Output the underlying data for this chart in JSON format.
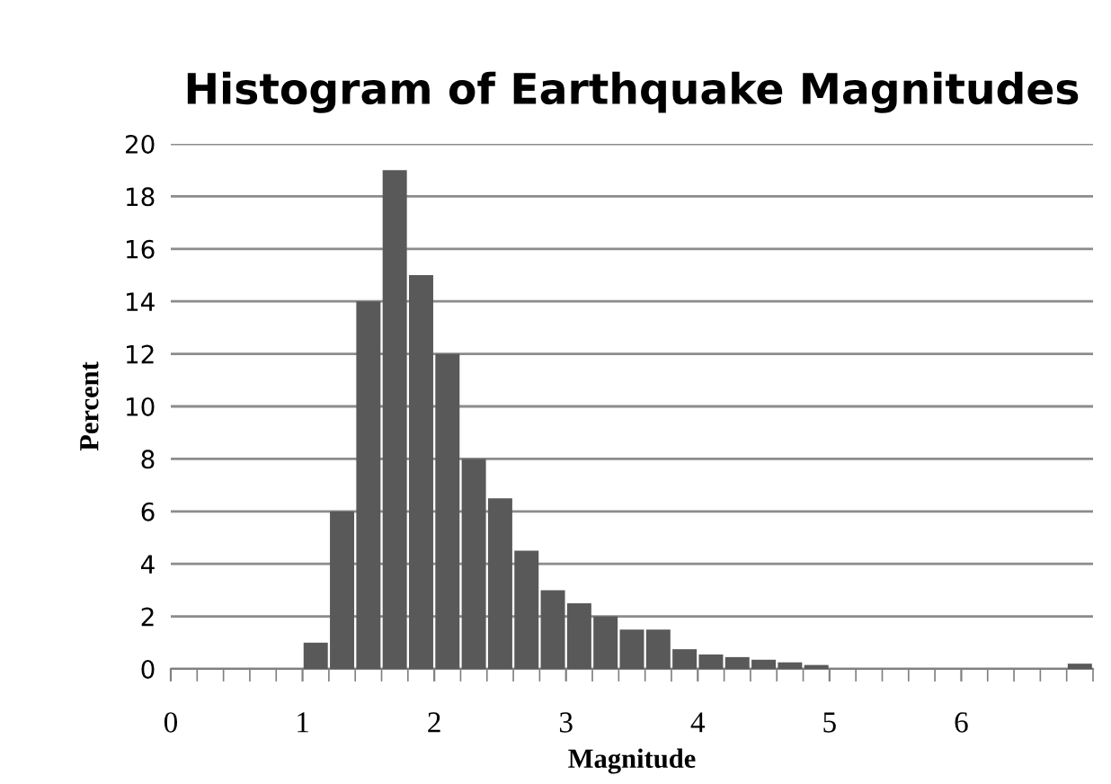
{
  "chart_data": {
    "type": "histogram",
    "title": "Histogram of Earthquake Magnitudes",
    "xlabel": "Magnitude",
    "ylabel": "Percent",
    "bins": [
      0,
      0.2,
      0.4,
      0.6,
      0.8,
      1.0,
      1.2,
      1.4,
      1.6,
      1.8,
      2.0,
      2.2,
      2.4,
      2.6,
      2.8,
      3.0,
      3.2,
      3.4,
      3.6,
      3.8,
      4.0,
      4.2,
      4.4,
      4.6,
      4.8,
      5.0,
      5.2,
      5.4,
      5.6,
      5.8,
      6.0,
      6.2,
      6.4,
      6.6,
      6.8,
      7.0
    ],
    "values": [
      0,
      0,
      0,
      0,
      0,
      1,
      6,
      14,
      19,
      15,
      12,
      8,
      6.5,
      4.5,
      3,
      2.5,
      2,
      1.5,
      1.5,
      0.75,
      0.55,
      0.45,
      0.35,
      0.25,
      0.15,
      0,
      0,
      0,
      0,
      0,
      0,
      0,
      0,
      0,
      0.2
    ],
    "color": "#595959",
    "xlim": [
      0,
      7
    ],
    "xticks": [
      0,
      1,
      2,
      3,
      4,
      5,
      6
    ],
    "ylim": [
      0,
      20
    ],
    "yticks": [
      0,
      2,
      4,
      6,
      8,
      10,
      12,
      14,
      16,
      18,
      20
    ],
    "grid": "y"
  }
}
